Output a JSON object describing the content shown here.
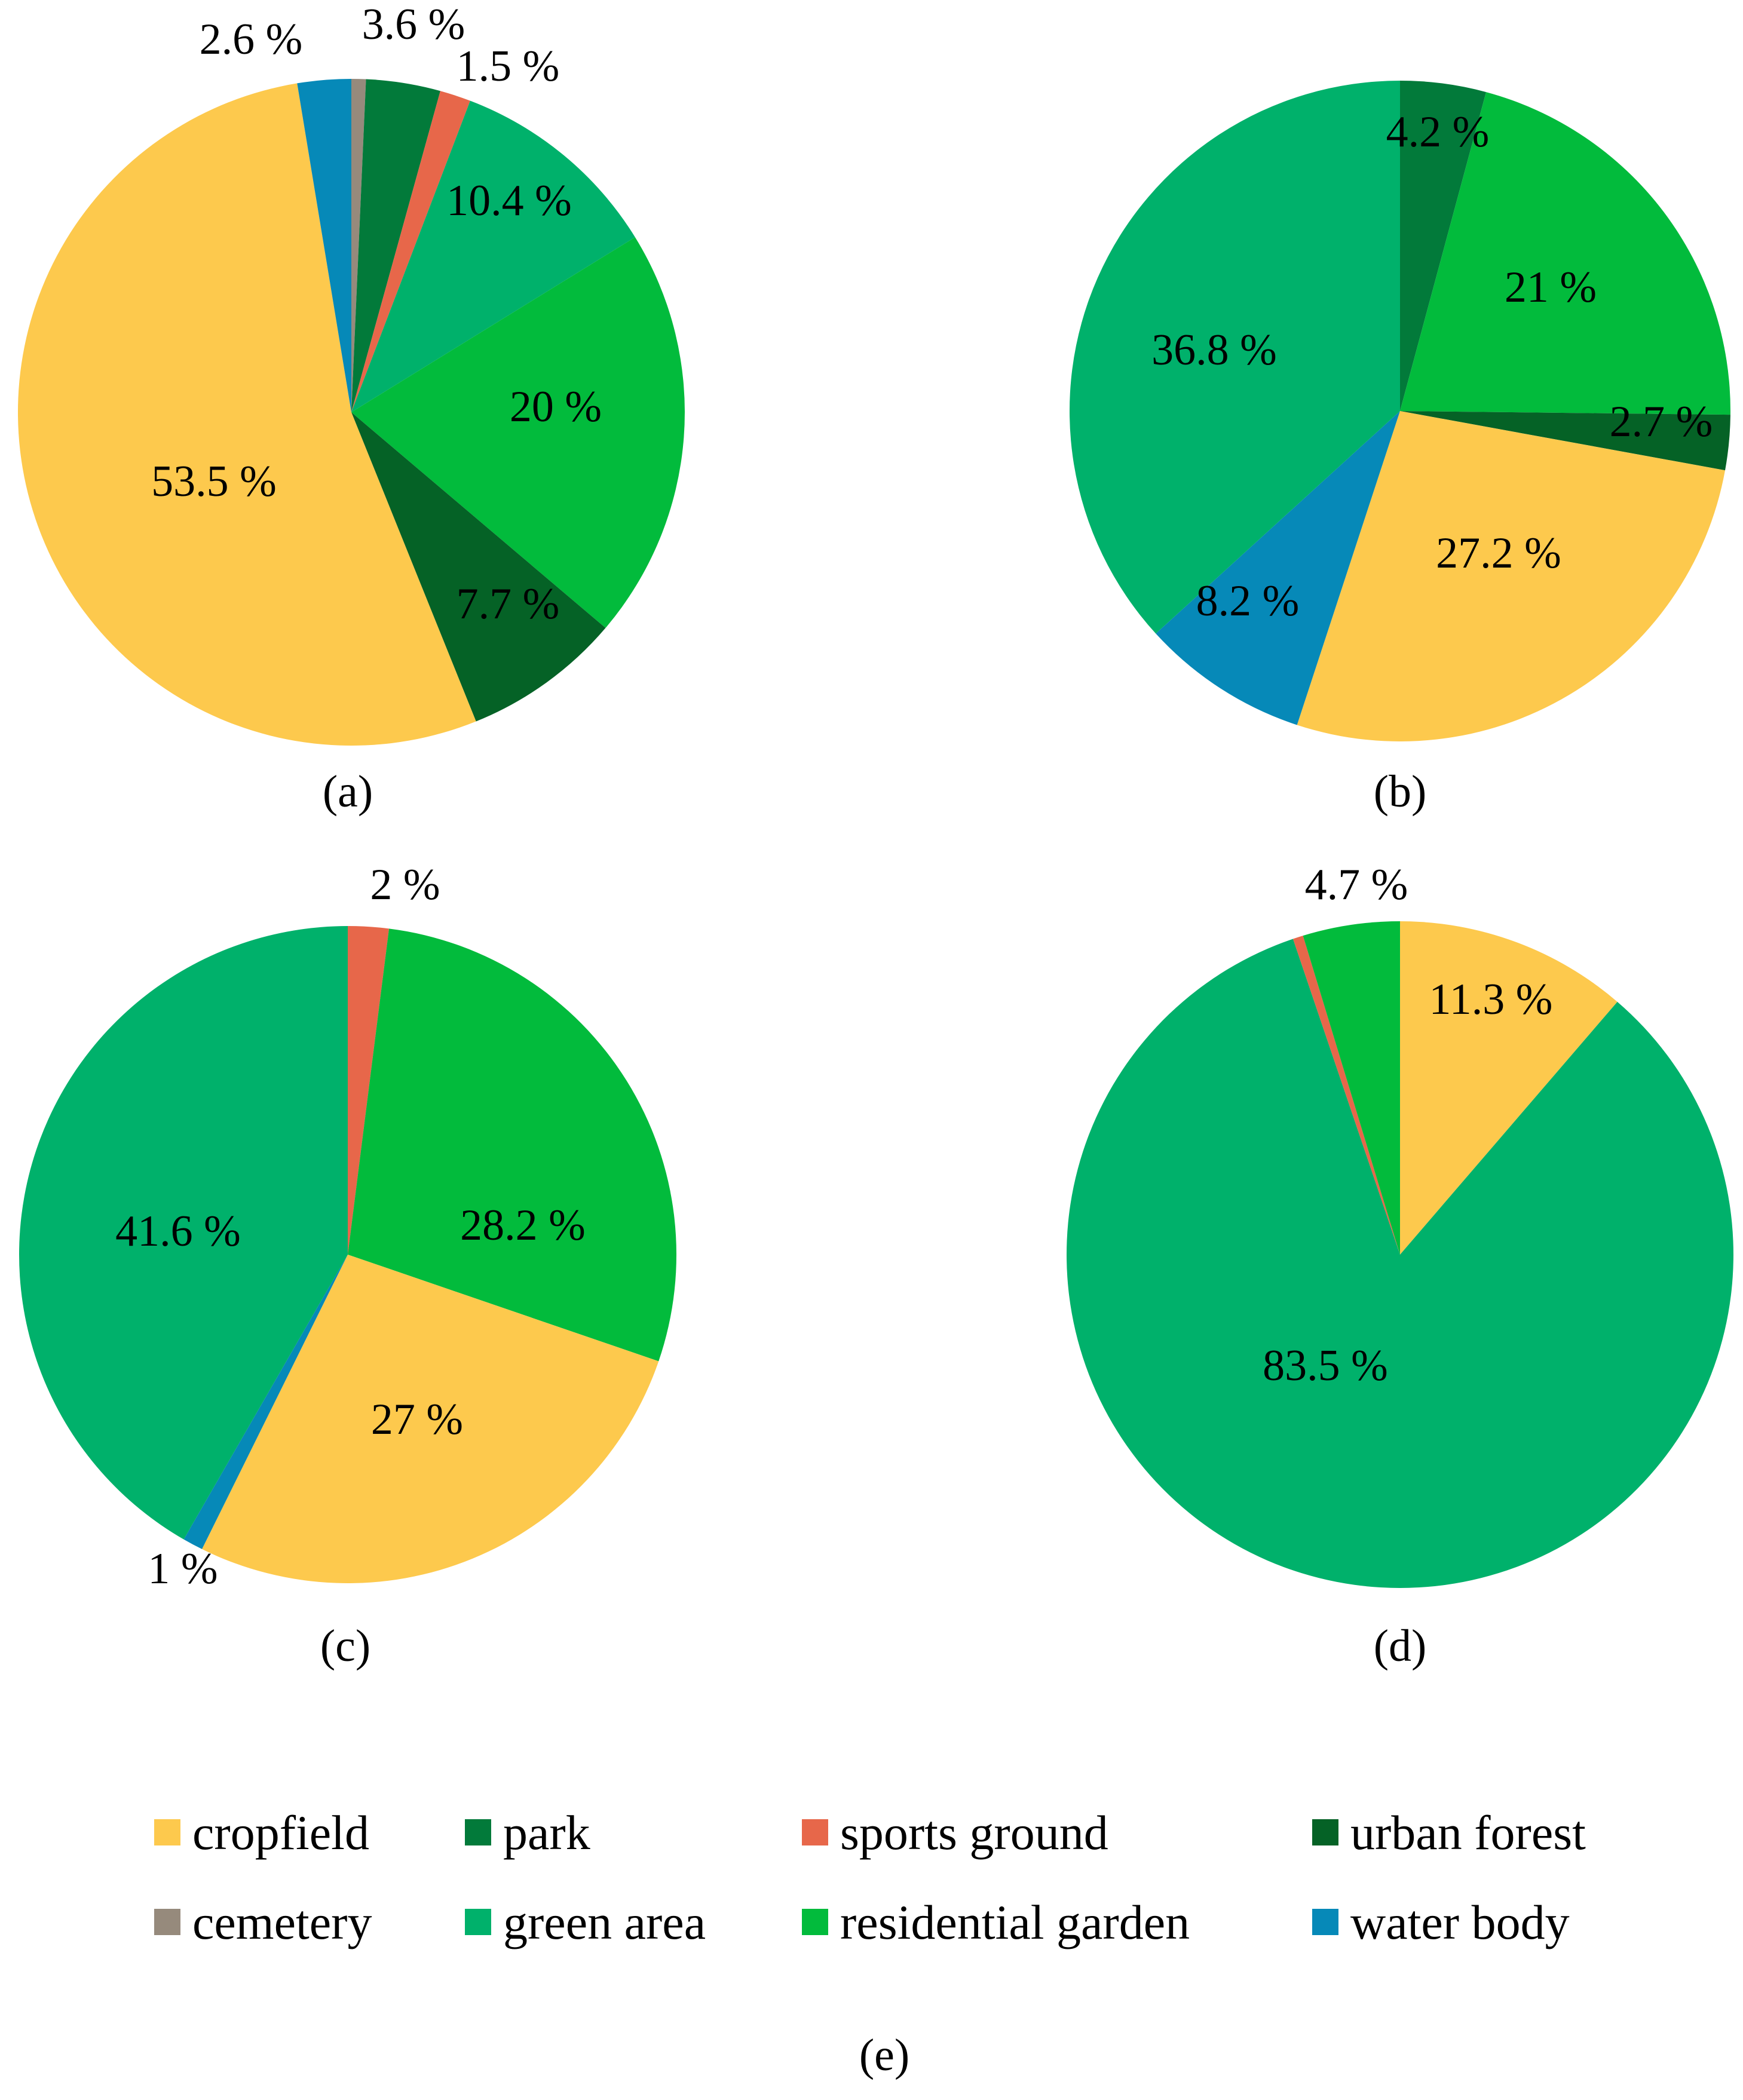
{
  "colors": {
    "cropfield": "#FDC94D",
    "park": "#027A3A",
    "sports ground": "#E7674A",
    "urban forest": "#056226",
    "cemetery": "#968A7C",
    "green area": "#00B16B",
    "residential garden": "#02BB3C",
    "water body": "#0689B8"
  },
  "chart_data": [
    {
      "type": "pie",
      "title": "(a)",
      "slices": [
        {
          "category": "cemetery",
          "value": 0.7,
          "label": ""
        },
        {
          "category": "park",
          "value": 3.6,
          "label": "3.6 %"
        },
        {
          "category": "sports ground",
          "value": 1.5,
          "label": "1.5 %"
        },
        {
          "category": "green area",
          "value": 10.4,
          "label": "10.4 %"
        },
        {
          "category": "residential garden",
          "value": 20,
          "label": "20 %"
        },
        {
          "category": "urban forest",
          "value": 7.7,
          "label": "7.7 %"
        },
        {
          "category": "cropfield",
          "value": 53.5,
          "label": "53.5 %"
        },
        {
          "category": "water body",
          "value": 2.6,
          "label": "2.6 %"
        }
      ]
    },
    {
      "type": "pie",
      "title": "(b)",
      "slices": [
        {
          "category": "park",
          "value": 4.2,
          "label": "4.2 %"
        },
        {
          "category": "residential garden",
          "value": 21,
          "label": "21 %"
        },
        {
          "category": "urban forest",
          "value": 2.7,
          "label": "2.7 %"
        },
        {
          "category": "cropfield",
          "value": 27.2,
          "label": "27.2 %"
        },
        {
          "category": "water body",
          "value": 8.2,
          "label": "8.2 %"
        },
        {
          "category": "green area",
          "value": 36.8,
          "label": "36.8 %"
        }
      ]
    },
    {
      "type": "pie",
      "title": "(c)",
      "slices": [
        {
          "category": "sports ground",
          "value": 2,
          "label": "2 %"
        },
        {
          "category": "residential garden",
          "value": 28.2,
          "label": "28.2 %"
        },
        {
          "category": "cropfield",
          "value": 27,
          "label": "27 %"
        },
        {
          "category": "water body",
          "value": 1,
          "label": "1 %"
        },
        {
          "category": "green area",
          "value": 41.6,
          "label": "41.6 %"
        }
      ]
    },
    {
      "type": "pie",
      "title": "(d)",
      "slices": [
        {
          "category": "cropfield",
          "value": 11.3,
          "label": "11.3 %"
        },
        {
          "category": "green area",
          "value": 83.5,
          "label": "83.5 %"
        },
        {
          "category": "sports ground",
          "value": 0.5,
          "label": ""
        },
        {
          "category": "residential garden",
          "value": 4.7,
          "label": "4.7 %"
        }
      ]
    }
  ],
  "legend": {
    "title": "(e)",
    "items": [
      "cropfield",
      "park",
      "sports ground",
      "urban forest",
      "cemetery",
      "green area",
      "residential garden",
      "water body"
    ]
  }
}
